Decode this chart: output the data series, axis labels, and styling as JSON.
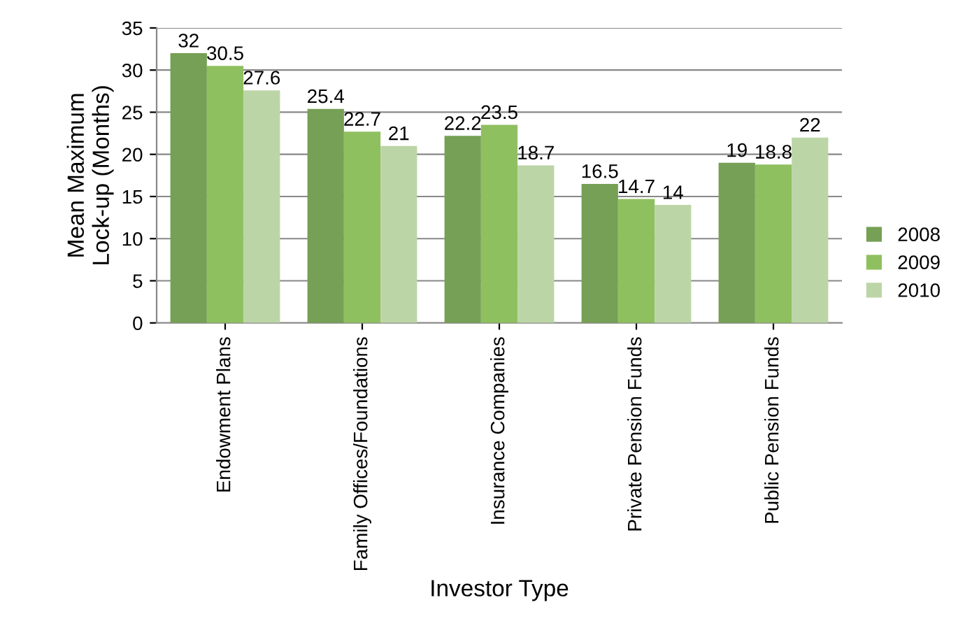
{
  "chart_data": {
    "type": "bar",
    "xlabel": "Investor Type",
    "ylabel": "Mean Maximum\nLock-up (Months)",
    "categories": [
      "Endowment Plans",
      "Family Offices/Foundations",
      "Insurance Companies",
      "Private Pension Funds",
      "Public Pension Funds"
    ],
    "series": [
      {
        "name": "2008",
        "color": "#76a055",
        "values": [
          32,
          25.4,
          22.2,
          16.5,
          19
        ]
      },
      {
        "name": "2009",
        "color": "#8fc060",
        "values": [
          30.5,
          22.7,
          23.5,
          14.7,
          18.8
        ]
      },
      {
        "name": "2010",
        "color": "#bcd5a6",
        "values": [
          27.6,
          21,
          18.7,
          14,
          22
        ]
      }
    ],
    "ylim": [
      0,
      35
    ],
    "yticks": [
      0,
      5,
      10,
      15,
      20,
      25,
      30,
      35
    ],
    "grid": "y",
    "legend": "right",
    "data_labels": true
  }
}
